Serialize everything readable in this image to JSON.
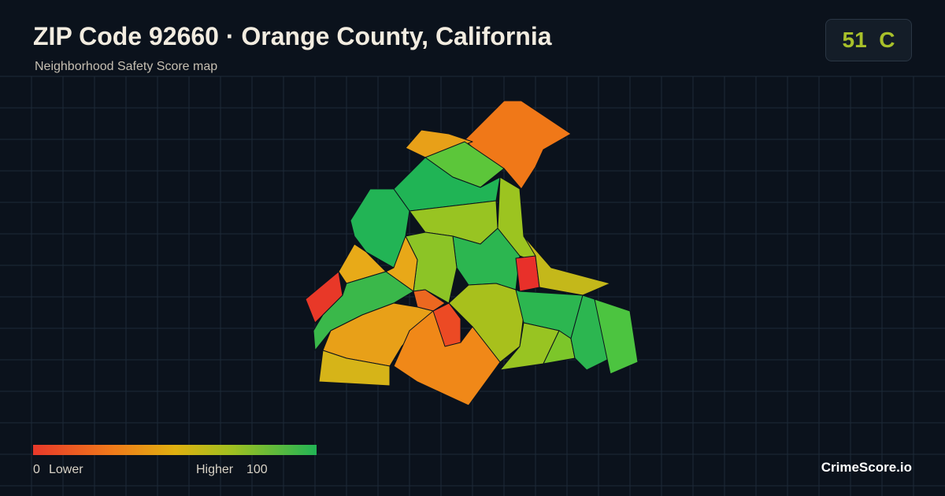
{
  "header": {
    "title": "ZIP Code 92660 · Orange County, California",
    "subtitle": "Neighborhood Safety Score map"
  },
  "badge": {
    "score": 51,
    "grade": "C"
  },
  "legend": {
    "min": 0,
    "min_label": "Lower",
    "max_label": "Higher",
    "max": 100
  },
  "brand": "CrimeScore.io"
}
